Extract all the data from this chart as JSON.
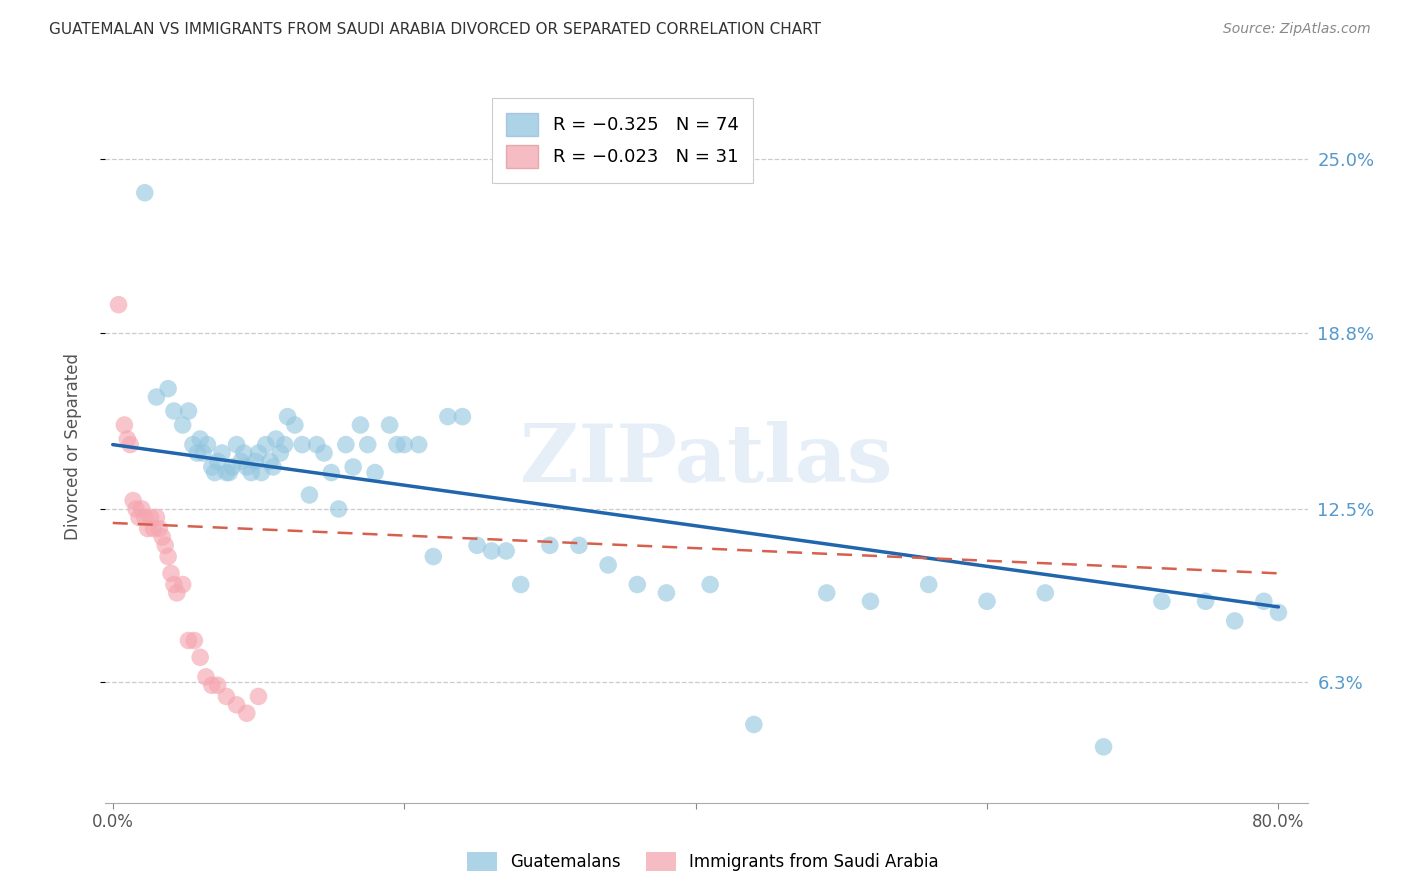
{
  "title": "GUATEMALAN VS IMMIGRANTS FROM SAUDI ARABIA DIVORCED OR SEPARATED CORRELATION CHART",
  "source": "Source: ZipAtlas.com",
  "ylabel": "Divorced or Separated",
  "ytick_labels": [
    "25.0%",
    "18.8%",
    "12.5%",
    "6.3%"
  ],
  "ytick_values": [
    0.25,
    0.188,
    0.125,
    0.063
  ],
  "xtick_labels": [
    "0.0%",
    "",
    "",
    "",
    "80.0%"
  ],
  "xtick_values": [
    0.0,
    0.2,
    0.4,
    0.6,
    0.8
  ],
  "xlim": [
    -0.005,
    0.82
  ],
  "ylim": [
    0.02,
    0.275
  ],
  "legend_blue_r": "R = −0.325",
  "legend_blue_n": "N = 74",
  "legend_pink_r": "R = −0.023",
  "legend_pink_n": "N = 31",
  "blue_label": "Guatemalans",
  "pink_label": "Immigrants from Saudi Arabia",
  "blue_color": "#92c5de",
  "pink_color": "#f4a6b0",
  "blue_line_color": "#2166ac",
  "pink_line_color": "#d6604d",
  "title_color": "#333333",
  "right_axis_color": "#5599cc",
  "watermark": "ZIPatlas",
  "blue_scatter_x": [
    0.022,
    0.03,
    0.038,
    0.042,
    0.048,
    0.052,
    0.055,
    0.058,
    0.06,
    0.062,
    0.065,
    0.068,
    0.07,
    0.072,
    0.075,
    0.078,
    0.08,
    0.082,
    0.085,
    0.088,
    0.09,
    0.092,
    0.095,
    0.098,
    0.1,
    0.102,
    0.105,
    0.108,
    0.11,
    0.112,
    0.115,
    0.118,
    0.12,
    0.125,
    0.13,
    0.135,
    0.14,
    0.145,
    0.15,
    0.155,
    0.16,
    0.165,
    0.17,
    0.175,
    0.18,
    0.19,
    0.195,
    0.2,
    0.21,
    0.22,
    0.23,
    0.24,
    0.25,
    0.26,
    0.27,
    0.28,
    0.3,
    0.32,
    0.34,
    0.36,
    0.38,
    0.41,
    0.44,
    0.49,
    0.52,
    0.56,
    0.6,
    0.64,
    0.68,
    0.72,
    0.75,
    0.77,
    0.79,
    0.8
  ],
  "blue_scatter_y": [
    0.238,
    0.165,
    0.168,
    0.16,
    0.155,
    0.16,
    0.148,
    0.145,
    0.15,
    0.145,
    0.148,
    0.14,
    0.138,
    0.142,
    0.145,
    0.138,
    0.138,
    0.14,
    0.148,
    0.142,
    0.145,
    0.14,
    0.138,
    0.142,
    0.145,
    0.138,
    0.148,
    0.142,
    0.14,
    0.15,
    0.145,
    0.148,
    0.158,
    0.155,
    0.148,
    0.13,
    0.148,
    0.145,
    0.138,
    0.125,
    0.148,
    0.14,
    0.155,
    0.148,
    0.138,
    0.155,
    0.148,
    0.148,
    0.148,
    0.108,
    0.158,
    0.158,
    0.112,
    0.11,
    0.11,
    0.098,
    0.112,
    0.112,
    0.105,
    0.098,
    0.095,
    0.098,
    0.048,
    0.095,
    0.092,
    0.098,
    0.092,
    0.095,
    0.04,
    0.092,
    0.092,
    0.085,
    0.092,
    0.088
  ],
  "pink_scatter_x": [
    0.004,
    0.008,
    0.01,
    0.012,
    0.014,
    0.016,
    0.018,
    0.02,
    0.022,
    0.024,
    0.026,
    0.028,
    0.03,
    0.032,
    0.034,
    0.036,
    0.038,
    0.04,
    0.042,
    0.044,
    0.048,
    0.052,
    0.056,
    0.06,
    0.064,
    0.068,
    0.072,
    0.078,
    0.085,
    0.092,
    0.1
  ],
  "pink_scatter_y": [
    0.198,
    0.155,
    0.15,
    0.148,
    0.128,
    0.125,
    0.122,
    0.125,
    0.122,
    0.118,
    0.122,
    0.118,
    0.122,
    0.118,
    0.115,
    0.112,
    0.108,
    0.102,
    0.098,
    0.095,
    0.098,
    0.078,
    0.078,
    0.072,
    0.065,
    0.062,
    0.062,
    0.058,
    0.055,
    0.052,
    0.058
  ],
  "blue_trend_x": [
    0.0,
    0.8
  ],
  "blue_trend_y": [
    0.148,
    0.09
  ],
  "pink_trend_x": [
    0.0,
    0.8
  ],
  "pink_trend_y": [
    0.12,
    0.102
  ]
}
